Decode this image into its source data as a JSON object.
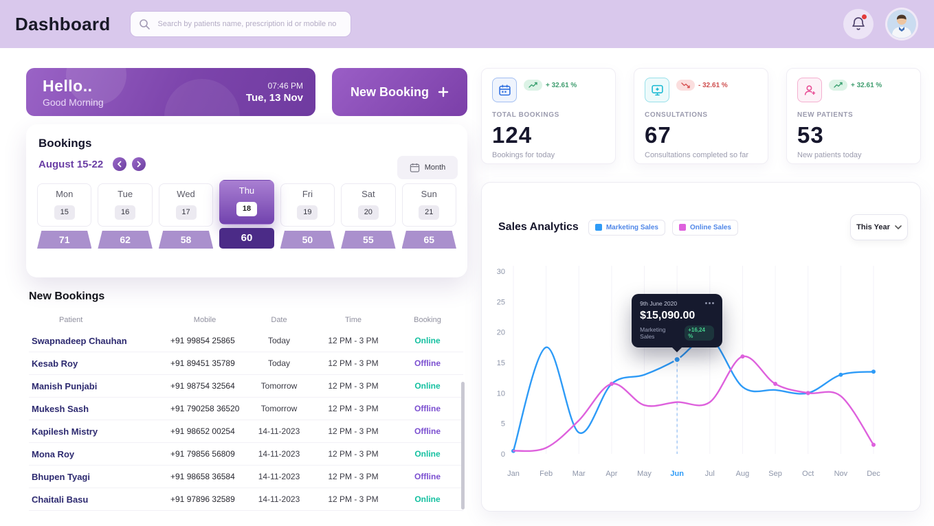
{
  "header": {
    "title": "Dashboard",
    "search_placeholder": "Search by patients name, prescription id or mobile no"
  },
  "hello_card": {
    "greeting": "Hello..",
    "subgreeting": "Good Morning",
    "time": "07:46 PM",
    "date": "Tue, 13 Nov"
  },
  "new_booking_button": "New Booking",
  "bookings": {
    "title": "Bookings",
    "range": "August 15-22",
    "view_label": "Month",
    "days": [
      {
        "name": "Mon",
        "date": "15",
        "count": "71",
        "selected": false
      },
      {
        "name": "Tue",
        "date": "16",
        "count": "62",
        "selected": false
      },
      {
        "name": "Wed",
        "date": "17",
        "count": "58",
        "selected": false
      },
      {
        "name": "Thu",
        "date": "18",
        "count": "60",
        "selected": true
      },
      {
        "name": "Fri",
        "date": "19",
        "count": "50",
        "selected": false
      },
      {
        "name": "Sat",
        "date": "20",
        "count": "55",
        "selected": false
      },
      {
        "name": "Sun",
        "date": "21",
        "count": "65",
        "selected": false
      }
    ]
  },
  "new_bookings": {
    "title": "New Bookings",
    "columns": [
      "Patient",
      "Mobile",
      "Date",
      "Time",
      "Booking"
    ],
    "rows": [
      {
        "patient": "Swapnadeep Chauhan",
        "mobile": "+91 99854 25865",
        "date": "Today",
        "time": "12 PM - 3 PM",
        "booking": "Online"
      },
      {
        "patient": "Kesab Roy",
        "mobile": "+91 89451 35789",
        "date": "Today",
        "time": "12 PM - 3 PM",
        "booking": "Offline"
      },
      {
        "patient": "Manish Punjabi",
        "mobile": "+91 98754 32564",
        "date": "Tomorrow",
        "time": "12 PM - 3 PM",
        "booking": "Online"
      },
      {
        "patient": "Mukesh Sash",
        "mobile": "+91 790258 36520",
        "date": "Tomorrow",
        "time": "12 PM - 3 PM",
        "booking": "Offline"
      },
      {
        "patient": "Kapilesh Mistry",
        "mobile": "+91 98652 00254",
        "date": "14-11-2023",
        "time": "12 PM - 3 PM",
        "booking": "Offline"
      },
      {
        "patient": "Mona Roy",
        "mobile": "+91 79856 56809",
        "date": "14-11-2023",
        "time": "12 PM - 3 PM",
        "booking": "Online"
      },
      {
        "patient": "Bhupen Tyagi",
        "mobile": "+91 98658 36584",
        "date": "14-11-2023",
        "time": "12 PM - 3 PM",
        "booking": "Offline"
      },
      {
        "patient": "Chaitali Basu",
        "mobile": "+91 97896 32589",
        "date": "14-11-2023",
        "time": "12 PM - 3 PM",
        "booking": "Online"
      }
    ]
  },
  "stats": [
    {
      "label": "TOTAL BOOKINGS",
      "value": "124",
      "sub": "Bookings for today",
      "change": "+ 32.61 %",
      "trend": "up",
      "icon": "calendar",
      "accent": "#2f6fe0"
    },
    {
      "label": "CONSULTATIONS",
      "value": "67",
      "sub": "Consultations completed so far",
      "change": "- 32.61 %",
      "trend": "down",
      "icon": "consultation",
      "accent": "#19b9d2"
    },
    {
      "label": "NEW PATIENTS",
      "value": "53",
      "sub": "New patients today",
      "change": "+ 32.61 %",
      "trend": "up",
      "icon": "patient",
      "accent": "#e84f96"
    }
  ],
  "sales": {
    "title": "Sales Analytics",
    "legend": [
      {
        "label": "Marketing Sales",
        "color": "#2e9bf7"
      },
      {
        "label": "Online Sales",
        "color": "#de61dd"
      }
    ],
    "range_selector": "This Year",
    "tooltip": {
      "date": "9th June 2020",
      "value": "$15,090.00",
      "series": "Marketing Sales",
      "change": "+16,24 %"
    }
  },
  "chart_data": {
    "type": "line",
    "x": [
      "Jan",
      "Feb",
      "Mar",
      "Apr",
      "May",
      "Jun",
      "Jul",
      "Aug",
      "Sep",
      "Oct",
      "Nov",
      "Dec"
    ],
    "ylim": [
      0,
      30
    ],
    "yticks": [
      0,
      5,
      10,
      15,
      20,
      25,
      30
    ],
    "legend_position": "top",
    "grid": "vertical",
    "series": [
      {
        "name": "Marketing Sales",
        "color": "#2e9bf7",
        "values": [
          0.5,
          17.5,
          3.5,
          11.5,
          13,
          15.5,
          19,
          11,
          10.5,
          10,
          13,
          13.5
        ],
        "dots": [
          0,
          5,
          9,
          10,
          11
        ]
      },
      {
        "name": "Online Sales",
        "color": "#de61dd",
        "values": [
          0.5,
          1,
          5.5,
          11.5,
          8,
          8.5,
          8.5,
          16,
          11.5,
          10,
          9.5,
          1.5
        ],
        "dots": [
          3,
          7,
          8,
          9,
          11
        ]
      }
    ],
    "tooltip_x_index": 5
  },
  "colors": {
    "accent_purple": "#7b44ab",
    "header_lavender": "#d9c8ec",
    "online": "#14c0a0",
    "offline": "#7b4fd0"
  }
}
